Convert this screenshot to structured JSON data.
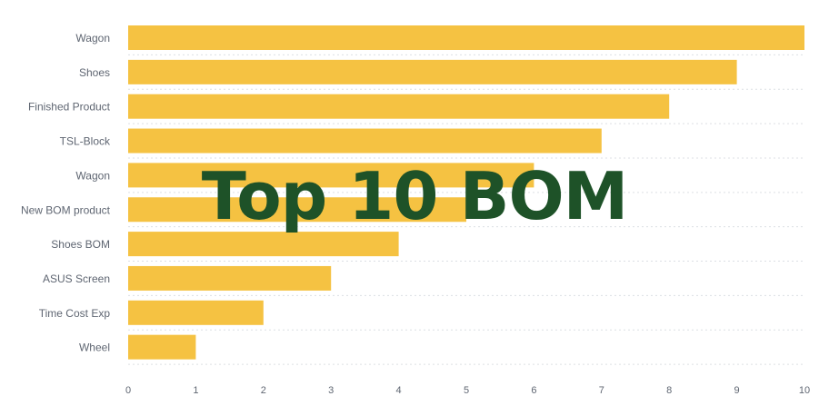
{
  "chart_data": {
    "type": "bar",
    "orientation": "horizontal",
    "categories": [
      "Wagon",
      "Shoes",
      "Finished Product",
      "TSL-Block",
      "Wagon",
      "New BOM product",
      "Shoes BOM",
      "ASUS Screen",
      "Time Cost Exp",
      "Wheel"
    ],
    "values": [
      10,
      9,
      8,
      7,
      6,
      5,
      4,
      3,
      2,
      1
    ],
    "xlim": [
      0,
      10
    ],
    "xticks": [
      0,
      1,
      2,
      3,
      4,
      5,
      6,
      7,
      8,
      9,
      10
    ],
    "grid": "dotted horizontal",
    "title": "",
    "xlabel": "",
    "ylabel": ""
  },
  "overlay": {
    "title": "Top 10 BOM"
  },
  "colors": {
    "bar": "#f5c242",
    "title": "#1e5228",
    "tick_text": "#5f6672",
    "grid": "#dcdfe4"
  }
}
